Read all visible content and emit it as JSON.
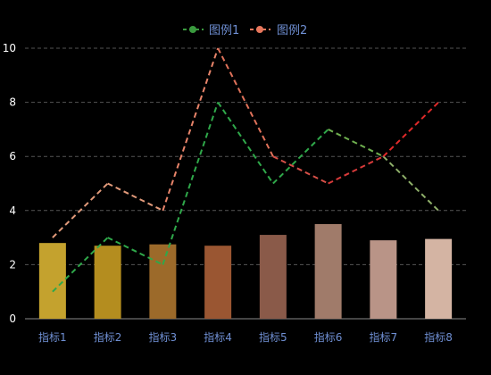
{
  "chart_data": {
    "type": "bar",
    "categories": [
      "指标1",
      "指标2",
      "指标3",
      "指标4",
      "指标5",
      "指标6",
      "指标7",
      "指标8"
    ],
    "bars": {
      "values": [
        2.8,
        2.7,
        2.75,
        2.7,
        3.1,
        3.5,
        2.9,
        2.95
      ],
      "colors": [
        "#c4a22e",
        "#b48d1f",
        "#9c6a2a",
        "#9a5632",
        "#8a5a49",
        "#a07b6a",
        "#b99487",
        "#d4b4a3"
      ]
    },
    "series": [
      {
        "name": "图例1",
        "type": "line",
        "style": "dashed",
        "values": [
          1,
          3,
          2,
          8,
          5,
          7,
          6,
          4
        ],
        "segment_colors": [
          "#2fa84a",
          "#2fa84a",
          "#2fa84a",
          "#2fa84a",
          "#2fa84a",
          "#6fb04f",
          "#8fb06a"
        ],
        "legend_color": "#3a9a3e"
      },
      {
        "name": "图例2",
        "type": "line",
        "style": "dashed",
        "values": [
          3,
          5,
          4,
          10,
          6,
          5,
          6,
          8
        ],
        "segment_colors": [
          "#e29a7a",
          "#e29a7a",
          "#e8846a",
          "#e0725a",
          "#d85048",
          "#d83a3a",
          "#e02a2a"
        ],
        "legend_color": "#e8775c"
      }
    ],
    "yaxis": {
      "min": 0,
      "max": 10,
      "ticks": [
        "0",
        "2",
        "4",
        "6",
        "8",
        "10"
      ]
    },
    "grid": true,
    "legend_position": "top-center"
  }
}
